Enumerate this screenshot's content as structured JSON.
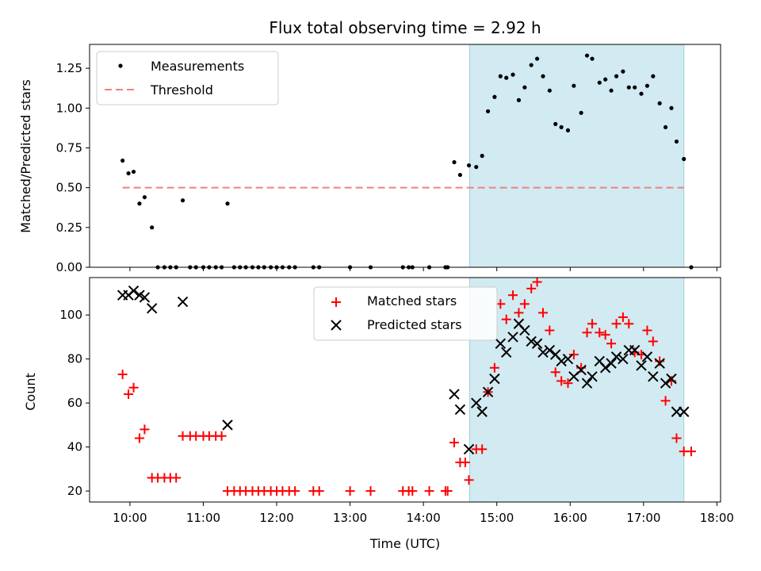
{
  "chart_data": {
    "type": "scatter",
    "title": "Flux total observing time = 2.92 h",
    "xlabel": "Time (UTC)",
    "xticks": [
      "10:00",
      "11:00",
      "12:00",
      "13:00",
      "14:00",
      "15:00",
      "16:00",
      "17:00",
      "18:00"
    ],
    "xlim_hours": [
      9.45,
      18.05
    ],
    "shaded_region_hours": [
      14.63,
      17.55
    ],
    "shade_color": "#add8e6",
    "top_panel": {
      "ylabel": "Matched/Predicted stars",
      "ylim": [
        0,
        1.4
      ],
      "yticks": [
        "0.00",
        "0.25",
        "0.50",
        "0.75",
        "1.00",
        "1.25"
      ],
      "threshold": 0.5,
      "threshold_range_hours": [
        9.9,
        17.55
      ],
      "legend": [
        "Measurements",
        "Threshold"
      ],
      "series": [
        {
          "name": "Measurements",
          "color": "#000000",
          "points": [
            [
              9.9,
              0.67
            ],
            [
              9.98,
              0.59
            ],
            [
              10.05,
              0.6
            ],
            [
              10.13,
              0.4
            ],
            [
              10.2,
              0.44
            ],
            [
              10.3,
              0.25
            ],
            [
              10.38,
              0
            ],
            [
              10.47,
              0
            ],
            [
              10.55,
              0
            ],
            [
              10.63,
              0
            ],
            [
              10.72,
              0.42
            ],
            [
              10.82,
              0
            ],
            [
              10.9,
              0
            ],
            [
              11.0,
              0
            ],
            [
              11.08,
              0
            ],
            [
              11.17,
              0
            ],
            [
              11.25,
              0
            ],
            [
              11.33,
              0.4
            ],
            [
              11.42,
              0
            ],
            [
              11.5,
              0
            ],
            [
              11.58,
              0
            ],
            [
              11.67,
              0
            ],
            [
              11.75,
              0
            ],
            [
              11.83,
              0
            ],
            [
              11.92,
              0
            ],
            [
              12.0,
              0
            ],
            [
              12.08,
              0
            ],
            [
              12.17,
              0
            ],
            [
              12.25,
              0
            ],
            [
              12.5,
              0
            ],
            [
              12.58,
              0
            ],
            [
              13.0,
              0
            ],
            [
              13.28,
              0
            ],
            [
              13.72,
              0
            ],
            [
              13.8,
              0
            ],
            [
              13.85,
              0
            ],
            [
              14.08,
              0
            ],
            [
              14.3,
              0
            ],
            [
              14.33,
              0
            ],
            [
              14.42,
              0.66
            ],
            [
              14.5,
              0.58
            ],
            [
              14.62,
              0.64
            ],
            [
              14.72,
              0.63
            ],
            [
              14.8,
              0.7
            ],
            [
              14.88,
              0.98
            ],
            [
              14.97,
              1.07
            ],
            [
              15.05,
              1.2
            ],
            [
              15.13,
              1.19
            ],
            [
              15.22,
              1.21
            ],
            [
              15.3,
              1.05
            ],
            [
              15.38,
              1.13
            ],
            [
              15.47,
              1.27
            ],
            [
              15.55,
              1.31
            ],
            [
              15.63,
              1.2
            ],
            [
              15.72,
              1.11
            ],
            [
              15.8,
              0.9
            ],
            [
              15.88,
              0.88
            ],
            [
              15.97,
              0.86
            ],
            [
              16.05,
              1.14
            ],
            [
              16.15,
              0.97
            ],
            [
              16.23,
              1.33
            ],
            [
              16.3,
              1.31
            ],
            [
              16.4,
              1.16
            ],
            [
              16.48,
              1.18
            ],
            [
              16.56,
              1.11
            ],
            [
              16.63,
              1.2
            ],
            [
              16.72,
              1.23
            ],
            [
              16.8,
              1.13
            ],
            [
              16.88,
              1.13
            ],
            [
              16.97,
              1.09
            ],
            [
              17.05,
              1.14
            ],
            [
              17.13,
              1.2
            ],
            [
              17.22,
              1.03
            ],
            [
              17.3,
              0.88
            ],
            [
              17.38,
              1.0
            ],
            [
              17.45,
              0.79
            ],
            [
              17.55,
              0.68
            ],
            [
              17.65,
              0
            ]
          ]
        }
      ]
    },
    "bottom_panel": {
      "ylabel": "Count",
      "ylim": [
        15,
        117
      ],
      "yticks": [
        "20",
        "40",
        "60",
        "80",
        "100"
      ],
      "legend": [
        "Matched stars",
        "Predicted stars"
      ],
      "series": [
        {
          "name": "Matched stars",
          "marker": "plus",
          "color": "#ff0000",
          "points": [
            [
              9.9,
              73
            ],
            [
              9.98,
              64
            ],
            [
              10.05,
              67
            ],
            [
              10.13,
              44
            ],
            [
              10.2,
              48
            ],
            [
              10.3,
              26
            ],
            [
              10.38,
              26
            ],
            [
              10.47,
              26
            ],
            [
              10.55,
              26
            ],
            [
              10.63,
              26
            ],
            [
              10.72,
              45
            ],
            [
              10.82,
              45
            ],
            [
              10.9,
              45
            ],
            [
              11.0,
              45
            ],
            [
              11.08,
              45
            ],
            [
              11.17,
              45
            ],
            [
              11.25,
              45
            ],
            [
              11.33,
              20
            ],
            [
              11.42,
              20
            ],
            [
              11.5,
              20
            ],
            [
              11.58,
              20
            ],
            [
              11.67,
              20
            ],
            [
              11.75,
              20
            ],
            [
              11.83,
              20
            ],
            [
              11.92,
              20
            ],
            [
              12.0,
              20
            ],
            [
              12.08,
              20
            ],
            [
              12.17,
              20
            ],
            [
              12.25,
              20
            ],
            [
              12.5,
              20
            ],
            [
              12.58,
              20
            ],
            [
              13.0,
              20
            ],
            [
              13.28,
              20
            ],
            [
              13.72,
              20
            ],
            [
              13.8,
              20
            ],
            [
              13.85,
              20
            ],
            [
              14.08,
              20
            ],
            [
              14.3,
              20
            ],
            [
              14.33,
              20
            ],
            [
              14.42,
              42
            ],
            [
              14.5,
              33
            ],
            [
              14.57,
              33
            ],
            [
              14.62,
              25
            ],
            [
              14.72,
              39
            ],
            [
              14.8,
              39
            ],
            [
              14.88,
              65
            ],
            [
              14.97,
              76
            ],
            [
              15.05,
              105
            ],
            [
              15.13,
              98
            ],
            [
              15.22,
              109
            ],
            [
              15.3,
              101
            ],
            [
              15.38,
              105
            ],
            [
              15.47,
              112
            ],
            [
              15.55,
              115
            ],
            [
              15.63,
              101
            ],
            [
              15.72,
              93
            ],
            [
              15.8,
              74
            ],
            [
              15.88,
              70
            ],
            [
              15.97,
              69
            ],
            [
              16.05,
              82
            ],
            [
              16.15,
              76
            ],
            [
              16.23,
              92
            ],
            [
              16.3,
              96
            ],
            [
              16.4,
              92
            ],
            [
              16.48,
              91
            ],
            [
              16.56,
              87
            ],
            [
              16.63,
              96
            ],
            [
              16.72,
              99
            ],
            [
              16.8,
              96
            ],
            [
              16.88,
              83
            ],
            [
              16.97,
              82
            ],
            [
              17.05,
              93
            ],
            [
              17.13,
              88
            ],
            [
              17.22,
              79
            ],
            [
              17.3,
              61
            ],
            [
              17.38,
              70
            ],
            [
              17.45,
              44
            ],
            [
              17.55,
              38
            ],
            [
              17.65,
              38
            ]
          ]
        },
        {
          "name": "Predicted stars",
          "marker": "x",
          "color": "#000000",
          "points": [
            [
              9.9,
              109
            ],
            [
              9.98,
              109
            ],
            [
              10.05,
              111
            ],
            [
              10.13,
              109
            ],
            [
              10.2,
              108
            ],
            [
              10.3,
              103
            ],
            [
              10.72,
              106
            ],
            [
              11.33,
              50
            ],
            [
              14.42,
              64
            ],
            [
              14.5,
              57
            ],
            [
              14.62,
              39
            ],
            [
              14.72,
              60
            ],
            [
              14.8,
              56
            ],
            [
              14.88,
              65
            ],
            [
              14.97,
              71
            ],
            [
              15.05,
              87
            ],
            [
              15.13,
              83
            ],
            [
              15.22,
              90
            ],
            [
              15.3,
              96
            ],
            [
              15.38,
              93
            ],
            [
              15.47,
              88
            ],
            [
              15.55,
              87
            ],
            [
              15.63,
              83
            ],
            [
              15.72,
              84
            ],
            [
              15.8,
              82
            ],
            [
              15.88,
              79
            ],
            [
              15.97,
              80
            ],
            [
              16.05,
              72
            ],
            [
              16.15,
              75
            ],
            [
              16.23,
              69
            ],
            [
              16.3,
              72
            ],
            [
              16.4,
              79
            ],
            [
              16.48,
              76
            ],
            [
              16.56,
              78
            ],
            [
              16.63,
              81
            ],
            [
              16.72,
              80
            ],
            [
              16.8,
              84
            ],
            [
              16.88,
              84
            ],
            [
              16.97,
              77
            ],
            [
              17.05,
              81
            ],
            [
              17.13,
              72
            ],
            [
              17.22,
              78
            ],
            [
              17.3,
              69
            ],
            [
              17.38,
              71
            ],
            [
              17.45,
              56
            ],
            [
              17.55,
              56
            ]
          ]
        }
      ]
    }
  }
}
